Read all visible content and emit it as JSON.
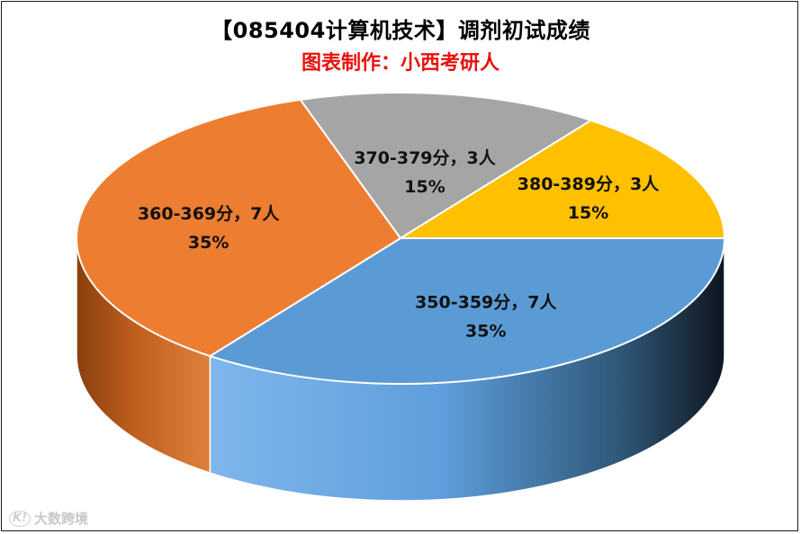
{
  "chart_data": {
    "type": "pie",
    "title": "【085404计算机技术】调剂初试成绩",
    "subtitle": "图表制作：小西考研人",
    "slices": [
      {
        "label": "350-359分，7人",
        "percent": "35%",
        "value": 7,
        "color": "#5b9bd5"
      },
      {
        "label": "360-369分，7人",
        "percent": "35%",
        "value": 7,
        "color": "#ed7d31"
      },
      {
        "label": "370-379分，3人",
        "percent": "15%",
        "value": 3,
        "color": "#a5a5a5"
      },
      {
        "label": "380-389分，3人",
        "percent": "15%",
        "value": 3,
        "color": "#ffc000"
      }
    ],
    "style": "3d-pie",
    "legend": "none"
  },
  "watermark": {
    "logo": "K!",
    "text": "大数跨境"
  }
}
